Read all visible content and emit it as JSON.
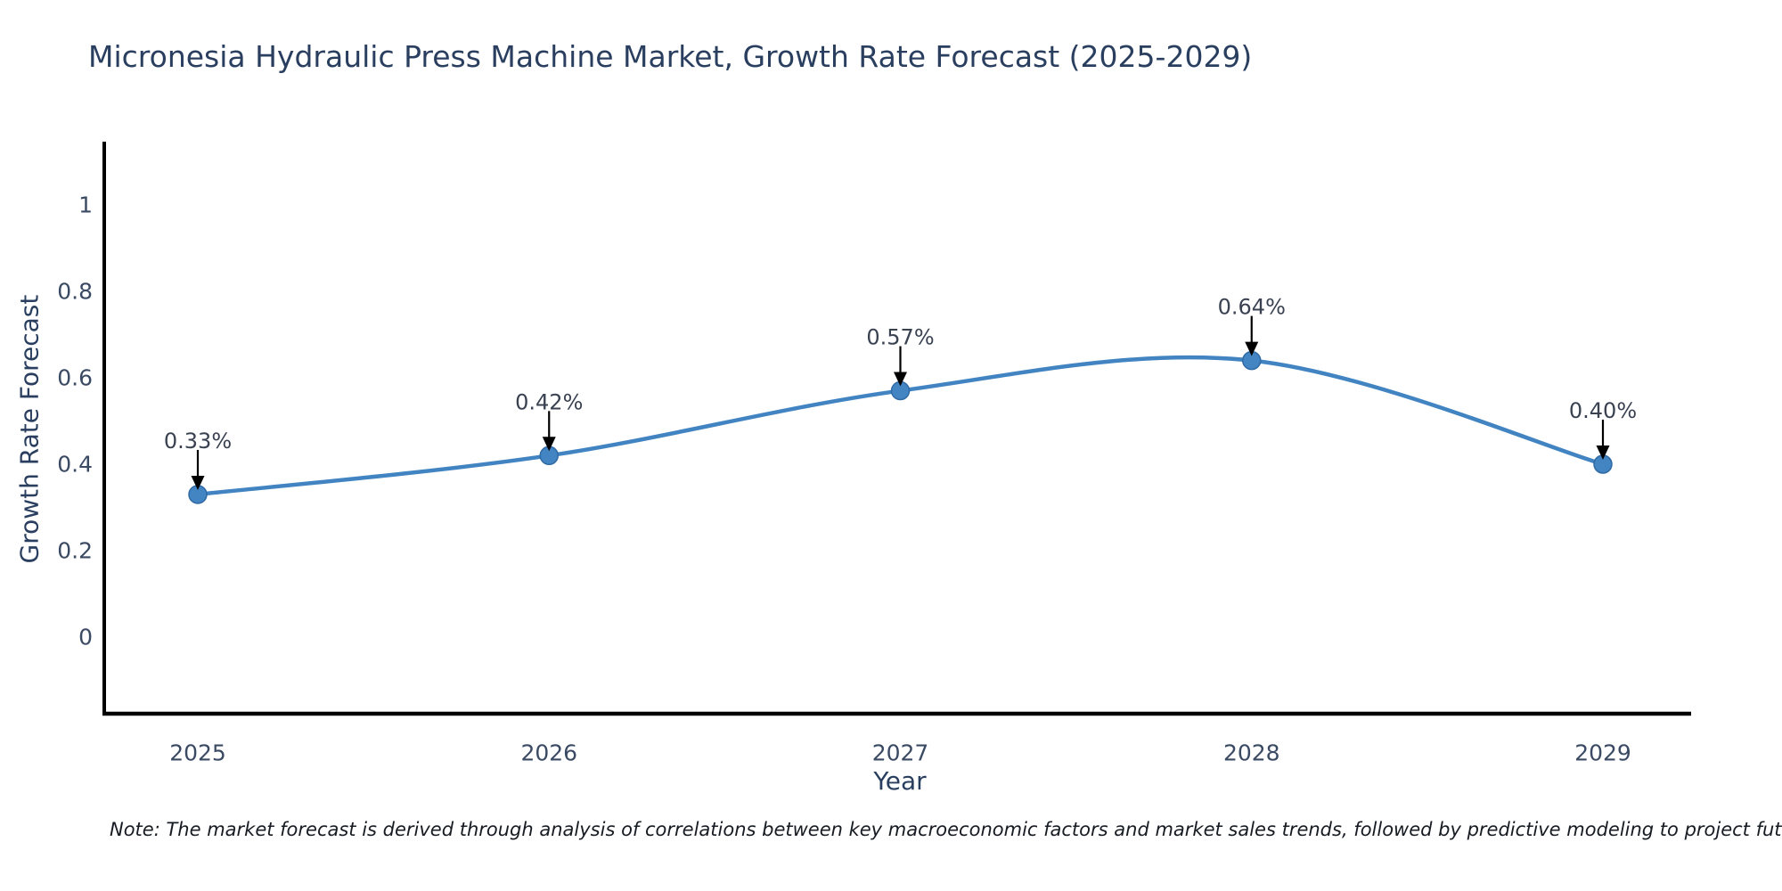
{
  "page": {
    "note": "Note: The market forecast is derived through analysis of correlations between key macroeconomic factors and market sales trends, followed by predictive modeling to project future sales"
  },
  "chart_data": {
    "type": "line",
    "title": "Micronesia Hydraulic Press Machine Market, Growth Rate Forecast (2025-2029)",
    "xlabel": "Year",
    "ylabel": "Growth Rate Forecast",
    "categories": [
      "2025",
      "2026",
      "2027",
      "2028",
      "2029"
    ],
    "series": [
      {
        "name": "Growth Rate Forecast",
        "values": [
          0.33,
          0.42,
          0.57,
          0.64,
          0.4
        ],
        "point_labels": [
          "0.33%",
          "0.42%",
          "0.57%",
          "0.64%",
          "0.40%"
        ]
      }
    ],
    "y_ticks": [
      {
        "label": "1",
        "value": 1.0
      },
      {
        "label": "0.8",
        "value": 0.8
      },
      {
        "label": "0.6",
        "value": 0.6
      },
      {
        "label": "0.4",
        "value": 0.4
      },
      {
        "label": "0.2",
        "value": 0.2
      },
      {
        "label": "0",
        "value": 0.0
      }
    ],
    "ylim": [
      -0.18,
      1.15
    ],
    "line_shape": "spline",
    "grid": false,
    "legend_position": "none",
    "colors": {
      "line": "#4184c1",
      "marker_fill": "#4384c2",
      "marker_edge": "#306aa4",
      "axis_line": "#000000",
      "title_text": "#2a3f5f",
      "axis_title_text": "#2a3f5f",
      "tick_text": "#3b4a63",
      "annotation_text": "#3a4252",
      "arrow": "#000000",
      "note_text": "#171b22",
      "background": "#ffffff"
    }
  }
}
